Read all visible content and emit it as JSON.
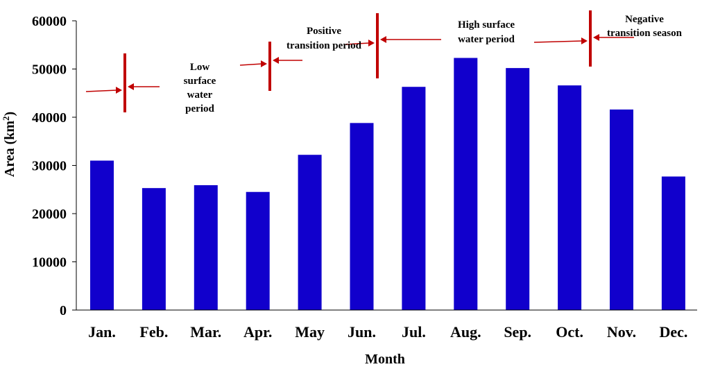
{
  "chart_data": {
    "type": "bar",
    "categories": [
      "Jan.",
      "Feb.",
      "Mar.",
      "Apr.",
      "May",
      "Jun.",
      "Jul.",
      "Aug.",
      "Sep.",
      "Oct.",
      "Nov.",
      "Dec."
    ],
    "values": [
      31000,
      25300,
      25900,
      24500,
      32200,
      38800,
      46300,
      52300,
      50200,
      46600,
      41600,
      27700
    ],
    "bar_color": "#1100cc",
    "marker_color": "#c00000",
    "xlabel": "Month",
    "ylabel": "Area (km",
    "ylabel_superscript": "2",
    "ylabel_close": ")",
    "ylim": [
      0,
      60000
    ],
    "yticks": [
      0,
      10000,
      20000,
      30000,
      40000,
      50000,
      60000
    ],
    "grid": false,
    "annotations": [
      {
        "lines": [
          "Low",
          "surface",
          "water",
          "period"
        ]
      },
      {
        "lines": [
          "Positive",
          "transition period"
        ]
      },
      {
        "lines": [
          "High surface",
          "water period"
        ]
      },
      {
        "lines": [
          "Negative",
          "transition season"
        ]
      }
    ]
  }
}
